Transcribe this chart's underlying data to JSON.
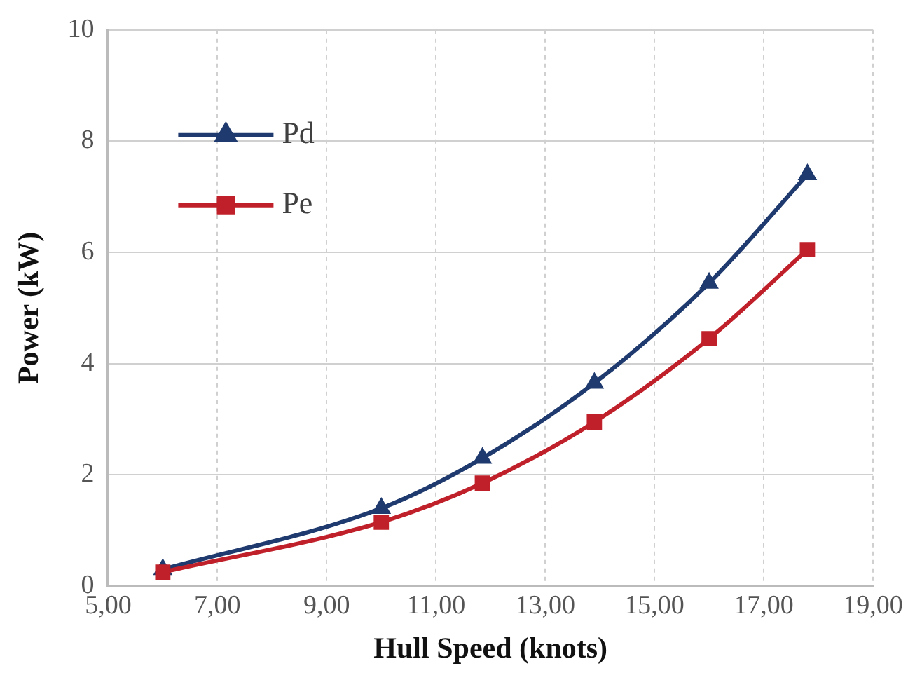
{
  "chart_data": {
    "type": "line",
    "xlabel": "Hull Speed (knots)",
    "ylabel": "Power (kW)",
    "xlim": [
      5,
      19
    ],
    "xticks": [
      {
        "value": 5,
        "label": "5,00"
      },
      {
        "value": 7,
        "label": "7,00"
      },
      {
        "value": 9,
        "label": "9,00"
      },
      {
        "value": 11,
        "label": "11,00"
      },
      {
        "value": 13,
        "label": "13,00"
      },
      {
        "value": 15,
        "label": "15,00"
      },
      {
        "value": 17,
        "label": "17,00"
      },
      {
        "value": 19,
        "label": "19,00"
      }
    ],
    "ylim": [
      0,
      10
    ],
    "yticks": [
      0,
      2,
      4,
      6,
      8,
      10
    ],
    "grid": true,
    "legend": "top left",
    "series": [
      {
        "name": "Pd",
        "color": "#1f3a6e",
        "marker": "triangle",
        "x": [
          6.0,
          10.0,
          11.85,
          13.9,
          16.0,
          17.8
        ],
        "values": [
          0.3,
          1.4,
          2.3,
          3.65,
          5.45,
          7.4
        ]
      },
      {
        "name": "Pe",
        "color": "#c0202a",
        "marker": "square",
        "x": [
          6.0,
          10.0,
          11.85,
          13.9,
          16.0,
          17.8
        ],
        "values": [
          0.25,
          1.15,
          1.85,
          2.95,
          4.45,
          6.05
        ]
      }
    ]
  }
}
